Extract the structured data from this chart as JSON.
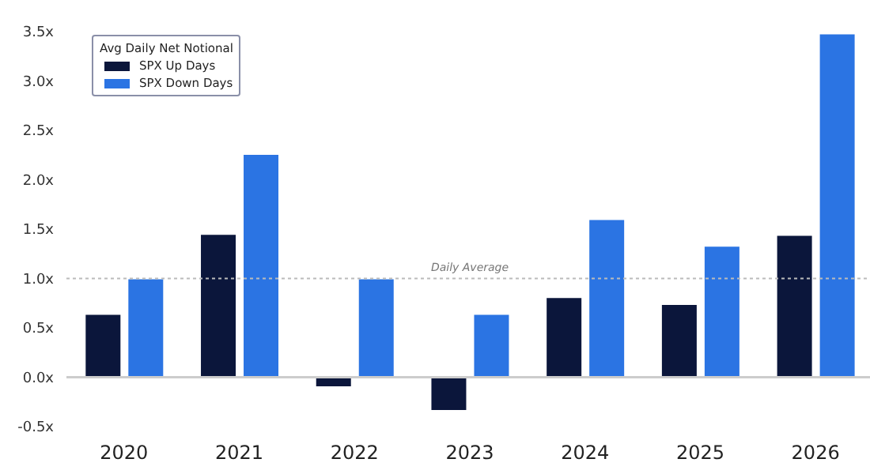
{
  "chart_data": {
    "type": "bar",
    "categories": [
      "2020",
      "2021",
      "2022",
      "2023",
      "2024",
      "2025",
      "2026"
    ],
    "series": [
      {
        "name": "SPX Up Days",
        "color": "#0b163b",
        "values": [
          0.64,
          1.45,
          -0.1,
          -0.34,
          0.81,
          0.74,
          1.44
        ]
      },
      {
        "name": "SPX Down Days",
        "color": "#2b74e3",
        "values": [
          1.0,
          2.26,
          1.0,
          0.64,
          1.6,
          1.33,
          3.48
        ]
      }
    ],
    "ylim": [
      -0.5,
      3.5
    ],
    "yticks": [
      {
        "value": -0.5,
        "label": "-0.5x"
      },
      {
        "value": 0,
        "label": "0.0x"
      },
      {
        "value": 0.5,
        "label": "0.5x"
      },
      {
        "value": 1,
        "label": "1.0x"
      },
      {
        "value": 1.5,
        "label": "1.5x"
      },
      {
        "value": 2,
        "label": "2.0x"
      },
      {
        "value": 2.5,
        "label": "2.5x"
      },
      {
        "value": 3,
        "label": "3.0x"
      },
      {
        "value": 3.5,
        "label": "3.5x"
      }
    ],
    "legend_title": "Avg Daily Net Notional",
    "legend": "top left",
    "grid": false,
    "ref_lines": [
      {
        "axis": "y",
        "value": 1,
        "label": "Daily Average",
        "color": "#bbbbbb",
        "line_style": "dotted"
      }
    ]
  }
}
